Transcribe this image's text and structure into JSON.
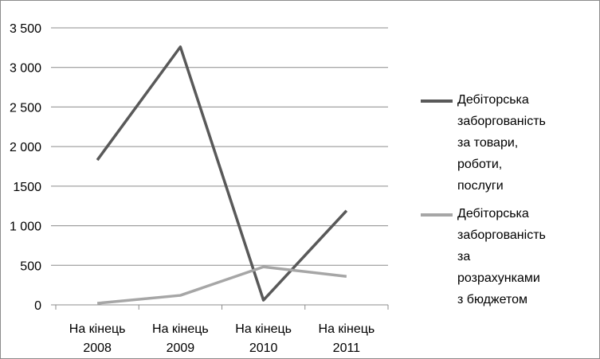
{
  "chart_data": {
    "type": "line",
    "categories": [
      "На кінець 2008",
      "На кінець 2009",
      "На кінець 2010",
      "На кінець 2011"
    ],
    "series": [
      {
        "name": "Дебіторська заборгованість за товари, роботи, послуги",
        "color": "#595959",
        "values": [
          1830,
          3260,
          60,
          1190
        ]
      },
      {
        "name": "Дебіторська заборгованість за розрахунками з бюджетом",
        "color": "#a6a6a6",
        "values": [
          20,
          120,
          480,
          360
        ]
      }
    ],
    "ylim": [
      0,
      3500
    ],
    "yticks": [
      0,
      500,
      {
        "value": 1000,
        "label": "1 000"
      },
      1500,
      {
        "value": 2000,
        "label": "2 000"
      },
      {
        "value": 2500,
        "label": "2 500"
      },
      {
        "value": 3000,
        "label": "3 000"
      },
      {
        "value": 3500,
        "label": "3 500"
      }
    ],
    "grid": true,
    "legend": "right"
  }
}
